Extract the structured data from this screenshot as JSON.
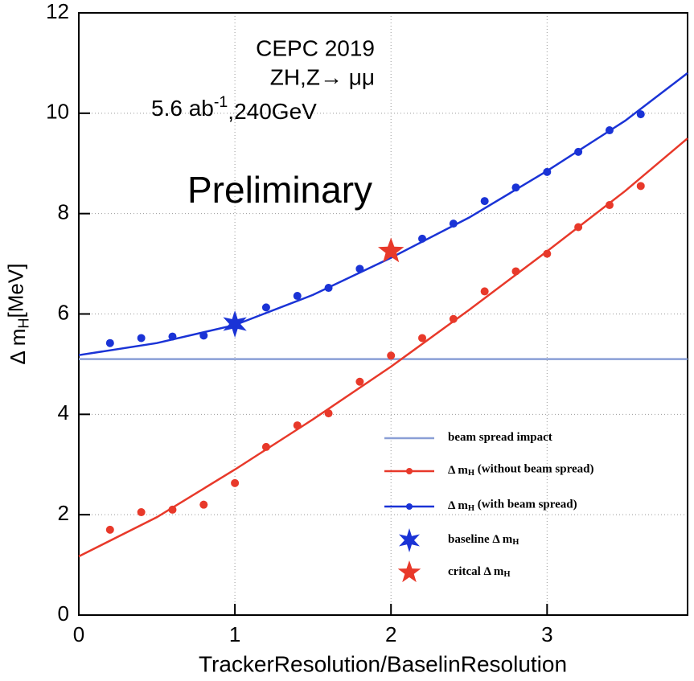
{
  "chart_data": {
    "type": "scatter",
    "x_label": "TrackerResolution/BaselinResolution",
    "y_label_parts": [
      "Δ m",
      "H",
      "[MeV]"
    ],
    "annotations": [
      "CEPC 2019",
      "ZH,Z→ μμ"
    ],
    "luminosity_parts": [
      "5.6 ab",
      "-1",
      ",240GeV"
    ],
    "watermark": "Preliminary",
    "xlim": [
      0,
      3.9
    ],
    "ylim": [
      0,
      12
    ],
    "xticks": [
      0,
      1,
      2,
      3
    ],
    "yticks": [
      0,
      2,
      4,
      6,
      8,
      10,
      12
    ],
    "grid": true,
    "legend": "lower-right",
    "reference_lines": [
      {
        "name_parts": [
          "beam spread impact"
        ],
        "color": "#8a9fd6",
        "value": 5.1
      }
    ],
    "series": [
      {
        "name_parts": [
          "Δ m",
          "H",
          " (without beam spread)"
        ],
        "color": "#e8392a",
        "x": [
          0.2,
          0.4,
          0.6,
          0.8,
          1.0,
          1.2,
          1.4,
          1.6,
          1.8,
          2.0,
          2.2,
          2.4,
          2.6,
          2.8,
          3.0,
          3.2,
          3.4,
          3.6
        ],
        "values": [
          1.7,
          2.05,
          2.1,
          2.2,
          2.63,
          3.35,
          3.78,
          4.02,
          4.65,
          5.17,
          5.52,
          5.9,
          6.45,
          6.85,
          7.2,
          7.73,
          8.17,
          8.55
        ],
        "fit_x": [
          0,
          0.5,
          1,
          1.5,
          2,
          2.5,
          3,
          3.5,
          3.9
        ],
        "fit_values": [
          1.17,
          1.95,
          2.9,
          3.9,
          4.95,
          6.08,
          7.25,
          8.45,
          9.5
        ]
      },
      {
        "name_parts": [
          "Δ m",
          "H",
          " (with beam spread)"
        ],
        "color": "#1a33d6",
        "x": [
          0.2,
          0.4,
          0.6,
          0.8,
          1.2,
          1.4,
          1.6,
          1.8,
          2.2,
          2.4,
          2.6,
          2.8,
          3.0,
          3.2,
          3.4,
          3.6
        ],
        "values": [
          5.42,
          5.52,
          5.55,
          5.57,
          6.13,
          6.36,
          6.52,
          6.9,
          7.5,
          7.8,
          8.25,
          8.52,
          8.83,
          9.23,
          9.66,
          9.98
        ],
        "fit_x": [
          0,
          0.5,
          1,
          1.5,
          2,
          2.5,
          3,
          3.5,
          3.9
        ],
        "fit_values": [
          5.18,
          5.42,
          5.78,
          6.38,
          7.12,
          7.92,
          8.85,
          9.85,
          10.8
        ]
      }
    ],
    "markers": [
      {
        "name_parts": [
          "baseline Δ m",
          "H"
        ],
        "color": "#1a33d6",
        "star_points": 6,
        "x": 1,
        "value": 5.8
      },
      {
        "name_parts": [
          "critcal Δ m",
          "H"
        ],
        "color": "#e8392a",
        "star_points": 5,
        "x": 2,
        "value": 7.25
      }
    ]
  }
}
